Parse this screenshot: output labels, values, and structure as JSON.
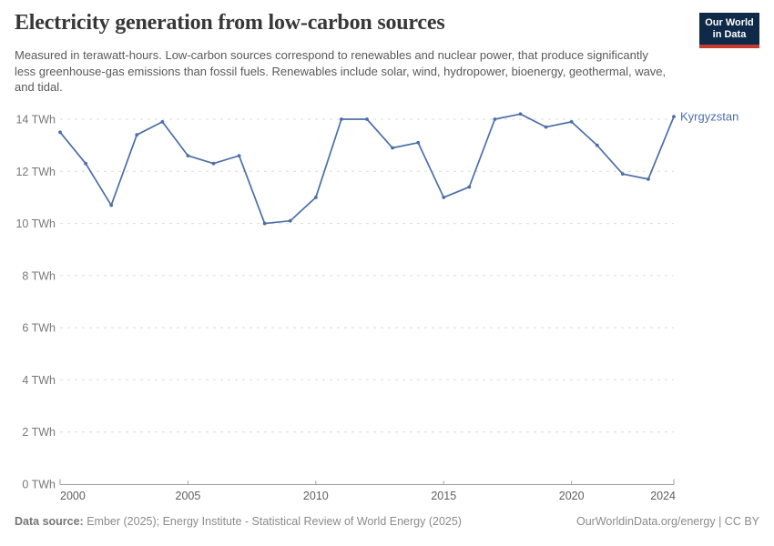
{
  "header": {
    "title": "Electricity generation from low-carbon sources",
    "subtitle": "Measured in terawatt-hours. Low-carbon sources correspond to renewables and nuclear power, that produce significantly less greenhouse-gas emissions than fossil fuels. Renewables include solar, wind, hydropower, bioenergy, geothermal, wave, and tidal.",
    "logo": {
      "line1": "Our World",
      "line2": "in Data"
    }
  },
  "chart_data": {
    "type": "line",
    "title": "Electricity generation from low-carbon sources",
    "unit": "TWh",
    "entity": "Kyrgyzstan",
    "x": [
      2000,
      2001,
      2002,
      2003,
      2004,
      2005,
      2006,
      2007,
      2008,
      2009,
      2010,
      2011,
      2012,
      2013,
      2014,
      2015,
      2016,
      2017,
      2018,
      2019,
      2020,
      2021,
      2022,
      2023,
      2024
    ],
    "series": [
      {
        "name": "Kyrgyzstan",
        "values": [
          13.5,
          12.3,
          10.7,
          13.4,
          13.9,
          12.6,
          12.3,
          12.6,
          10.0,
          10.1,
          11.0,
          14.0,
          14.0,
          12.9,
          13.1,
          11.0,
          11.4,
          14.0,
          14.2,
          13.7,
          13.9,
          13.0,
          11.9,
          11.7,
          14.1
        ]
      }
    ],
    "xlim": [
      2000,
      2024
    ],
    "ylim": [
      0,
      14
    ],
    "x_ticks": [
      2000,
      2005,
      2010,
      2015,
      2020,
      2024
    ],
    "y_ticks": [
      0,
      2,
      4,
      6,
      8,
      10,
      12,
      14
    ],
    "grid": "horizontal-dashed",
    "legend_position": "end-of-line-label",
    "line_color": "#4c6ea7",
    "colors": {
      "grid": "#dcdcdc",
      "axis": "#9e9e9e",
      "axis_text": "#787878",
      "axis_text_x": "#5f5f5f"
    }
  },
  "footer": {
    "datasource_label": "Data source:",
    "datasource_text": " Ember (2025); Energy Institute - Statistical Review of World Energy (2025)",
    "rights": "OurWorldinData.org/energy | CC BY"
  }
}
